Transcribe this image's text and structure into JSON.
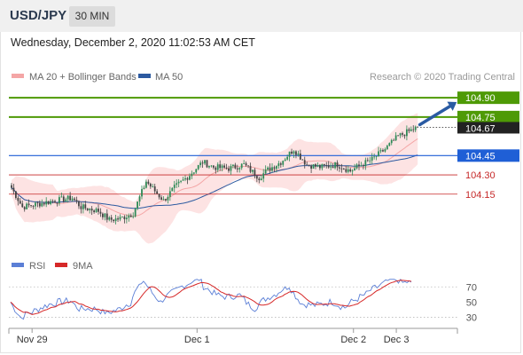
{
  "header": {
    "symbol": "USD/JPY",
    "timeframe": "30 MIN",
    "datetime": "Wednesday, December 2, 2020 11:02:53 AM CET"
  },
  "colors": {
    "bollinger": "#f4a6a6",
    "band_fill": "#fde3e3",
    "ma50": "#2c5aa0",
    "bull": "#2e8b57",
    "bear": "#444444",
    "green_level": "#4e9a06",
    "blue_level": "#1f5fd6",
    "red_level": "#c62828",
    "rsi": "#5b7fd6",
    "rsi_ma": "#d62828",
    "arrow": "#2a5ba3"
  },
  "chart_data": [
    {
      "type": "candlestick",
      "legend": [
        {
          "name": "MA 20 + Bollinger Bands",
          "color": "#f4a6a6"
        },
        {
          "name": "MA 50",
          "color": "#2c5aa0"
        }
      ],
      "watermark": "Research © 2020 Trading Central",
      "ylim": [
        103.9,
        104.97
      ],
      "x_ticks": [
        "Nov 29",
        "Dec 1",
        "Dec 2",
        "Dec 3"
      ],
      "x_tick_positions": [
        10,
        87,
        160,
        180
      ],
      "n_bars": 188,
      "price_segments": [
        [
          0,
          104.2
        ],
        [
          5,
          104.05
        ],
        [
          20,
          104.1
        ],
        [
          28,
          104.12
        ],
        [
          32,
          104.05
        ],
        [
          40,
          104.02
        ],
        [
          45,
          103.95
        ],
        [
          50,
          103.96
        ],
        [
          56,
          104.0
        ],
        [
          62,
          104.25
        ],
        [
          70,
          104.1
        ],
        [
          75,
          104.2
        ],
        [
          82,
          104.3
        ],
        [
          88,
          104.4
        ],
        [
          93,
          104.36
        ],
        [
          100,
          104.35
        ],
        [
          107,
          104.38
        ],
        [
          114,
          104.28
        ],
        [
          118,
          104.34
        ],
        [
          124,
          104.4
        ],
        [
          130,
          104.5
        ],
        [
          136,
          104.38
        ],
        [
          142,
          104.36
        ],
        [
          150,
          104.38
        ],
        [
          156,
          104.33
        ],
        [
          160,
          104.37
        ],
        [
          166,
          104.42
        ],
        [
          172,
          104.5
        ],
        [
          178,
          104.6
        ],
        [
          187,
          104.67
        ]
      ],
      "levels": [
        {
          "label": "104.90",
          "value": 104.9,
          "kind": "resistance"
        },
        {
          "label": "104.75",
          "value": 104.75,
          "kind": "resistance"
        },
        {
          "label": "104.67",
          "value": 104.67,
          "kind": "last_price"
        },
        {
          "label": "104.45",
          "value": 104.45,
          "kind": "pivot"
        },
        {
          "label": "104.30",
          "value": 104.3,
          "kind": "support"
        },
        {
          "label": "104.15",
          "value": 104.15,
          "kind": "support"
        }
      ],
      "forecast_arrow": {
        "from_bar": 188,
        "from_price": 104.67,
        "to_bar": 205,
        "to_price": 104.88
      }
    },
    {
      "type": "line",
      "legend": [
        {
          "name": "RSI",
          "color": "#5b7fd6"
        },
        {
          "name": "9MA",
          "color": "#d62828"
        }
      ],
      "ylim": [
        20,
        82
      ],
      "y_ticks": [
        "70",
        "50",
        "30"
      ],
      "y_tick_values": [
        70,
        50,
        30
      ],
      "overbought": 70,
      "oversold": 30
    }
  ]
}
